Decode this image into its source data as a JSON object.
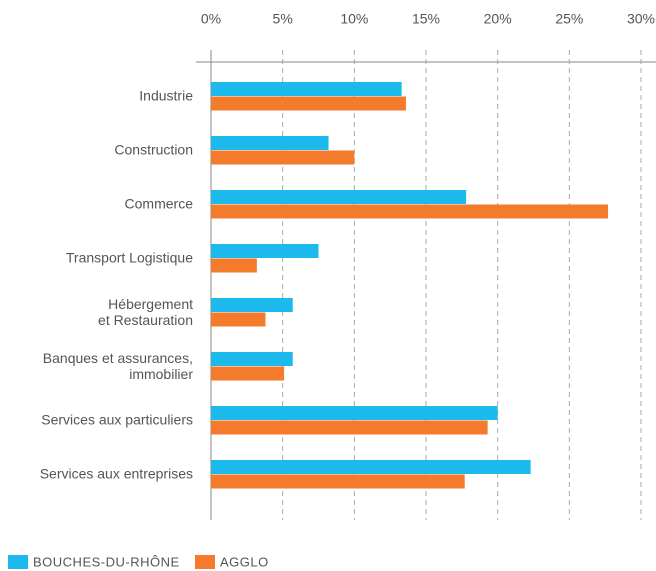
{
  "chart_data": {
    "type": "barh",
    "categories": [
      "Industrie",
      "Construction",
      "Commerce",
      "Transport Logistique",
      "Hébergement\net Restauration",
      "Banques et assurances,\nimmobilier",
      "Services aux particuliers",
      "Services aux entreprises"
    ],
    "series": [
      {
        "name": "BOUCHES-DU-RHÔNE",
        "color": "#1cb9ec",
        "values": [
          13.3,
          8.2,
          17.8,
          7.5,
          5.7,
          5.7,
          20.0,
          22.3
        ]
      },
      {
        "name": "AGGLO",
        "color": "#f47a2c",
        "values": [
          13.6,
          10.0,
          27.7,
          3.2,
          3.8,
          5.1,
          19.3,
          17.7
        ]
      }
    ],
    "xlim": [
      0,
      30
    ],
    "xticks": [
      {
        "value": 0,
        "label": "0%"
      },
      {
        "value": 5,
        "label": "5%"
      },
      {
        "value": 10,
        "label": "10%"
      },
      {
        "value": 15,
        "label": "15%"
      },
      {
        "value": 20,
        "label": "20%"
      },
      {
        "value": 25,
        "label": "25%"
      },
      {
        "value": 30,
        "label": "30%"
      }
    ],
    "grid": true
  }
}
